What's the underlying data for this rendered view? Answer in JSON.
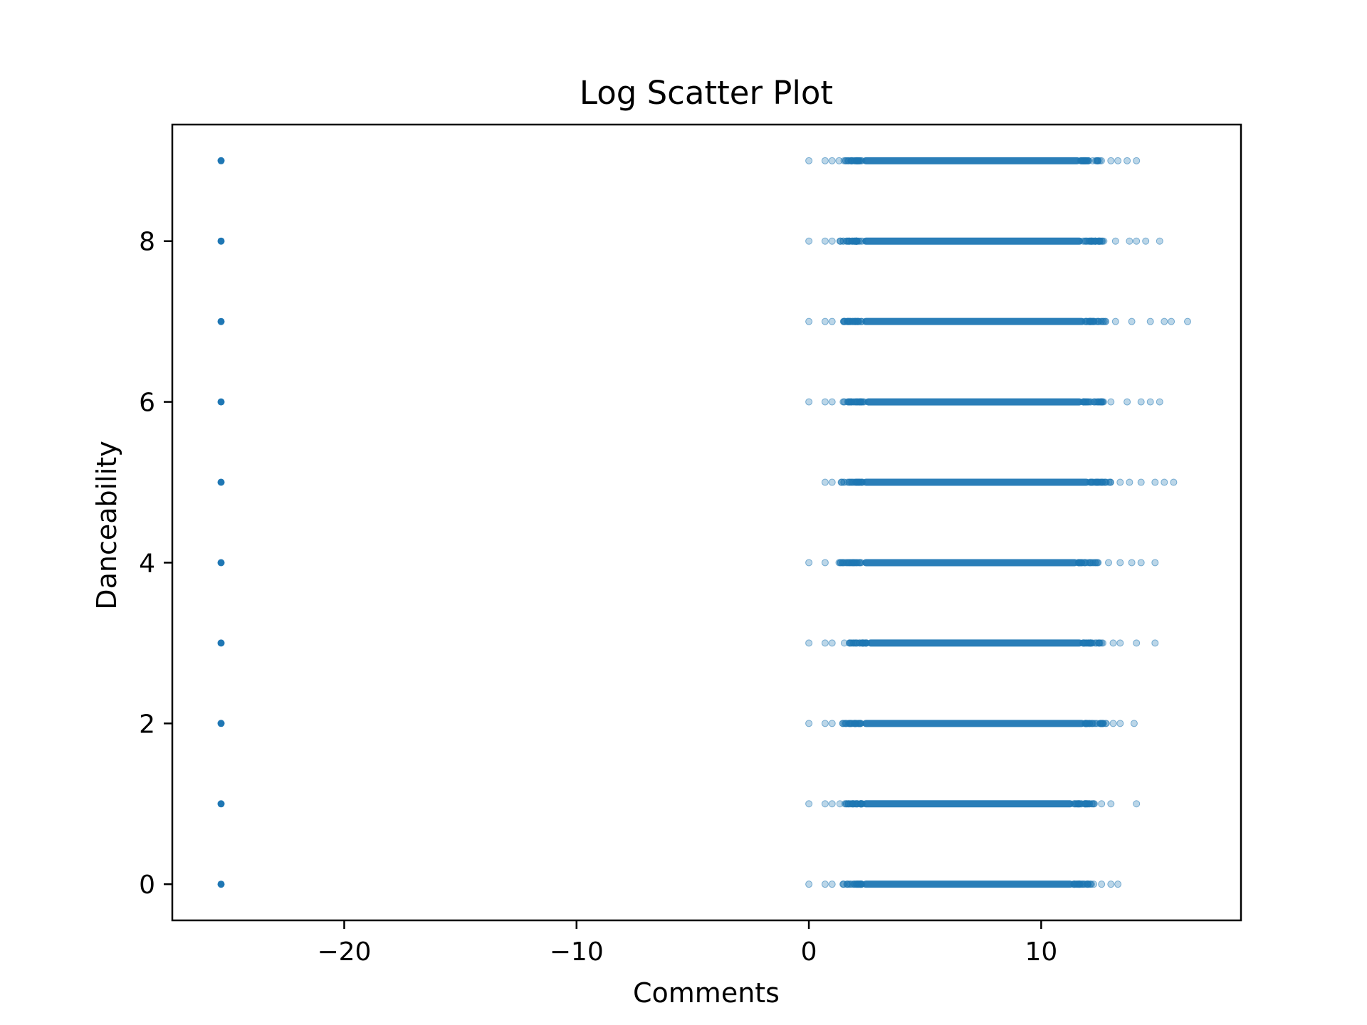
{
  "chart_data": {
    "type": "scatter",
    "title": "Log Scatter Plot",
    "xlabel": "Comments",
    "ylabel": "Danceability",
    "xlim": [
      -27.4,
      18.6
    ],
    "ylim": [
      -0.45,
      9.45
    ],
    "xticks": [
      -20,
      -10,
      0,
      10
    ],
    "xtick_labels": [
      "−20",
      "−10",
      "0",
      "10"
    ],
    "yticks": [
      0,
      2,
      4,
      6,
      8
    ],
    "ytick_labels": [
      "0",
      "2",
      "4",
      "6",
      "8"
    ],
    "grid": false,
    "legend": "none",
    "marker_color": "#1f77b4",
    "marker_alpha": 0.3,
    "zero_comment_x": -25.3,
    "zero_comment_levels": [
      0,
      1,
      2,
      3,
      4,
      5,
      6,
      7,
      8,
      9
    ],
    "rows": [
      {
        "y": 9,
        "dense_range": [
          1.3,
          12.6
        ],
        "x_points": [
          0,
          0.7,
          1.0,
          1.3,
          13.0,
          13.3,
          13.7,
          14.1
        ]
      },
      {
        "y": 8,
        "dense_range": [
          1.3,
          12.7
        ],
        "x_points": [
          0,
          0.7,
          1.0,
          13.2,
          13.8,
          14.1,
          14.5,
          15.1
        ]
      },
      {
        "y": 7,
        "dense_range": [
          1.3,
          12.8
        ],
        "x_points": [
          0,
          0.7,
          1.0,
          13.2,
          13.9,
          14.7,
          15.3,
          15.6,
          16.3
        ]
      },
      {
        "y": 6,
        "dense_range": [
          1.4,
          12.7
        ],
        "x_points": [
          0,
          0.7,
          1.0,
          13.0,
          13.7,
          14.3,
          14.7,
          15.1
        ]
      },
      {
        "y": 5,
        "dense_range": [
          1.3,
          13.0
        ],
        "x_points": [
          0.7,
          1.0,
          13.4,
          13.8,
          14.3,
          14.9,
          15.3,
          15.7
        ]
      },
      {
        "y": 4,
        "dense_range": [
          1.3,
          12.5
        ],
        "x_points": [
          0,
          0.7,
          1.3,
          12.9,
          13.4,
          13.9,
          14.3,
          14.9
        ]
      },
      {
        "y": 3,
        "dense_range": [
          1.5,
          12.7
        ],
        "x_points": [
          0,
          0.7,
          1.0,
          13.1,
          13.4,
          14.1,
          14.9
        ]
      },
      {
        "y": 2,
        "dense_range": [
          1.3,
          12.8
        ],
        "x_points": [
          0,
          0.7,
          1.0,
          13.1,
          13.4,
          14.0
        ]
      },
      {
        "y": 1,
        "dense_range": [
          1.3,
          12.3
        ],
        "x_points": [
          0,
          0.7,
          1.0,
          12.6,
          13.0,
          14.1
        ]
      },
      {
        "y": 0,
        "dense_range": [
          1.3,
          12.3
        ],
        "x_points": [
          0,
          0.7,
          1.0,
          12.6,
          13.0,
          13.3
        ]
      }
    ]
  }
}
